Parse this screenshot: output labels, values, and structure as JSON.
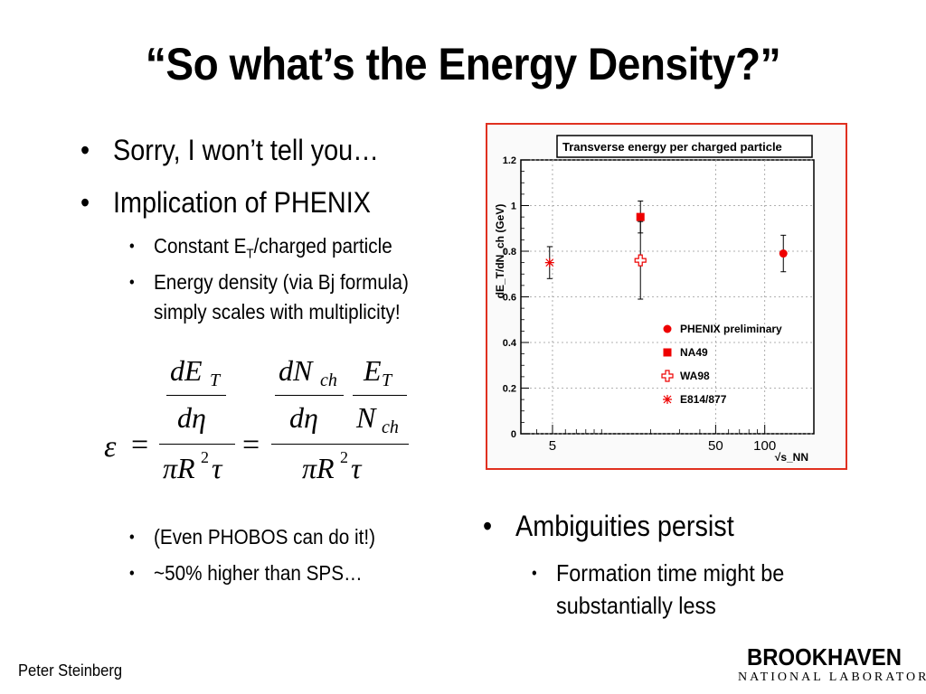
{
  "title": "“So what’s the Energy Density?”",
  "left_bullets": [
    "Sorry, I won’t tell you…",
    "Implication of PHENIX"
  ],
  "sub_bullets": {
    "constant_prefix": "Constant E",
    "constant_sub": "T",
    "constant_suffix": "/charged particle",
    "energy_line1": "Energy density (via Bj formula)",
    "energy_line2": "simply scales with multiplicity!"
  },
  "lower_bullets": [
    "(Even PHOBOS can do it!)",
    "~50% higher than SPS…"
  ],
  "right_bullets": {
    "main": "Ambiguities persist",
    "sub_line1": "Formation time might be",
    "sub_line2": "substantially less"
  },
  "formula": {
    "epsilon": "ε",
    "equals": "=",
    "dE": "dE",
    "T": "T",
    "deta": "dη",
    "piR": "πR",
    "sq": "2",
    "tau": "τ",
    "dN": "dN",
    "ch": "ch",
    "E": "E",
    "N": "N"
  },
  "chart_data": {
    "type": "scatter",
    "title": "Transverse energy per charged particle",
    "ylabel": "dE_T/dN_ch (GeV)",
    "xlabel": "√s_NN",
    "xscale": "log",
    "xlim": [
      3.2,
      200
    ],
    "ylim": [
      0,
      1.2
    ],
    "x_ticks": [
      "5",
      "50",
      "100"
    ],
    "y_ticks": [
      "0",
      "0.2",
      "0.4",
      "0.6",
      "0.8",
      "1",
      "1.2"
    ],
    "grid": true,
    "legend_position": "lower-right",
    "series": [
      {
        "name": "PHENIX preliminary",
        "marker": "circle",
        "color": "#ee0000",
        "x": [
          130
        ],
        "y": [
          0.79
        ],
        "yerr": [
          0.08
        ]
      },
      {
        "name": "NA49",
        "marker": "square",
        "color": "#ee0000",
        "x": [
          17.3
        ],
        "y": [
          0.95
        ],
        "yerr": [
          0.07
        ]
      },
      {
        "name": "WA98",
        "marker": "open-cross",
        "color": "#ee0000",
        "x": [
          17.3
        ],
        "y": [
          0.76
        ],
        "yerr": [
          0.17
        ]
      },
      {
        "name": "E814/877",
        "marker": "asterisk",
        "color": "#ee0000",
        "x": [
          4.8
        ],
        "y": [
          0.75
        ],
        "yerr": [
          0.07
        ]
      }
    ]
  },
  "footer": "Peter Steinberg",
  "logo": {
    "top": "BROOKHAVEN",
    "bottom": "NATIONAL LABORATORY"
  }
}
